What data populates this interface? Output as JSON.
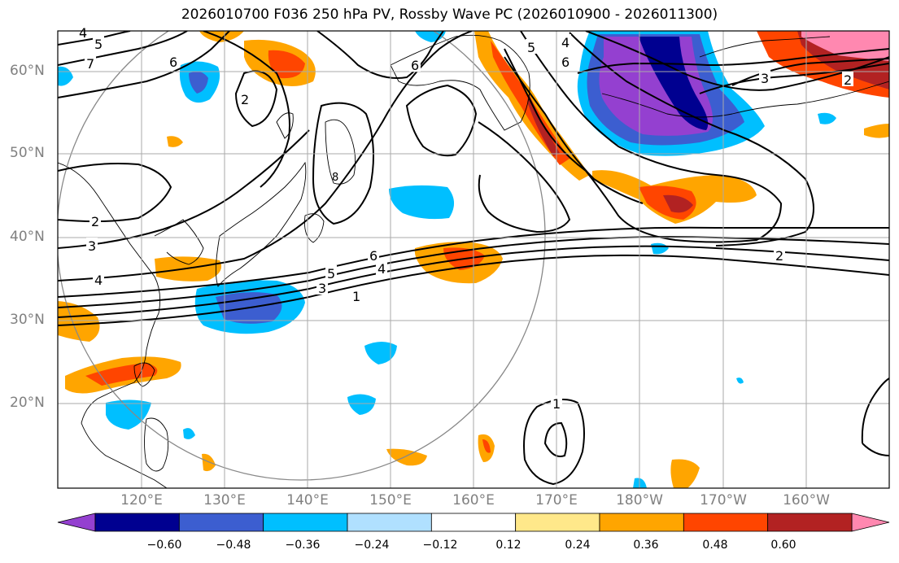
{
  "title": "2026010700 F036 250 hPa PV, Rossby Wave PC (2026010900 - 2026011300)",
  "lat_labels": [
    "60°N",
    "50°N",
    "40°N",
    "30°N",
    "20°N"
  ],
  "lon_labels": [
    "120°E",
    "130°E",
    "140°E",
    "150°E",
    "160°E",
    "170°E",
    "180°W",
    "170°W",
    "160°W"
  ],
  "colorbar": {
    "colors": [
      "#9440d0",
      "#000090",
      "#3c5ed0",
      "#00bfff",
      "#b0e0ff",
      "#ffffff",
      "#ffe88a",
      "#ffa500",
      "#ff4500",
      "#b22222",
      "#ff88b0"
    ],
    "labels": [
      "−0.60",
      "−0.48",
      "−0.36",
      "−0.24",
      "−0.12",
      "0.12",
      "0.24",
      "0.36",
      "0.48",
      "0.60"
    ]
  },
  "contour_labels": [
    "4",
    "5",
    "7",
    "6",
    "6",
    "5",
    "4",
    "6",
    "3",
    "2",
    "2",
    "3",
    "4",
    "6",
    "5",
    "4",
    "3",
    "1",
    "2",
    "1",
    "2",
    "8"
  ]
}
